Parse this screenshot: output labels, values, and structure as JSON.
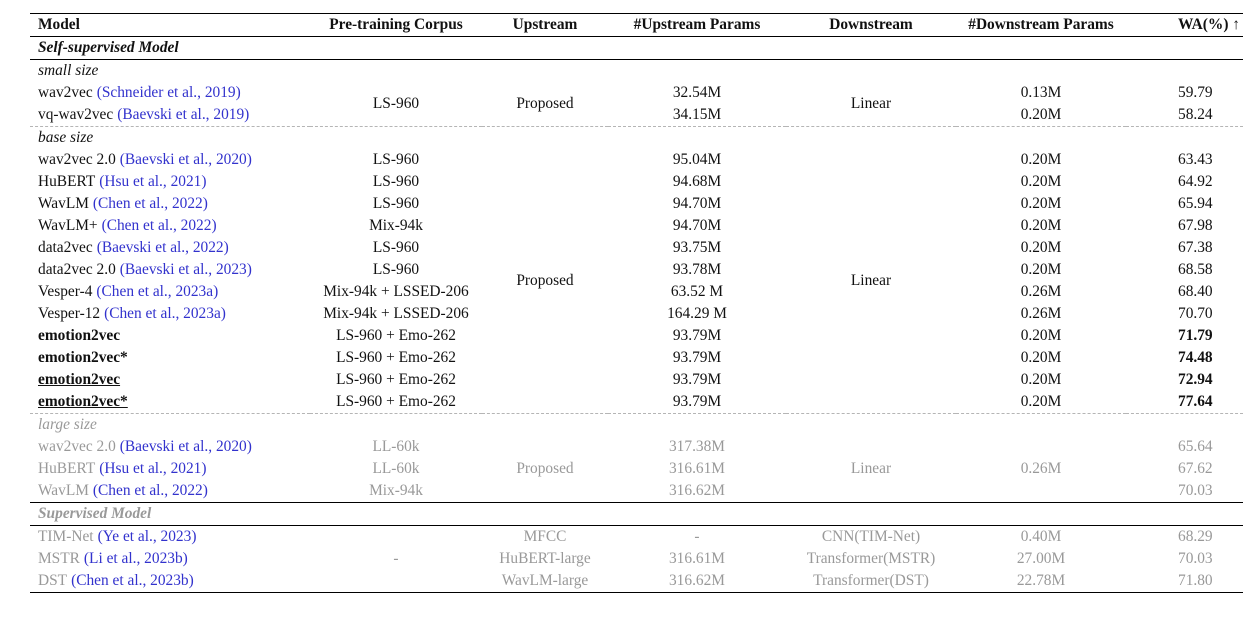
{
  "colors": {
    "citation": "#3232cd",
    "muted_text": "#999999",
    "rule": "#000000",
    "dashed_rule": "#b5b5b5",
    "background": "#ffffff",
    "text": "#111111"
  },
  "header": [
    "Model",
    "Pre-training Corpus",
    "Upstream",
    "#Upstream Params",
    "Downstream",
    "#Downstream Params",
    "WA(%) ↑"
  ],
  "self_supervised": {
    "title": "Self-supervised Model",
    "small": {
      "label": "small size",
      "corpus": "LS-960",
      "upstream": "Proposed",
      "downstream": "Linear",
      "rows": [
        {
          "model": "wav2vec",
          "cite": "(Schneider et al., 2019)",
          "up_params": "32.54M",
          "down_params": "0.13M",
          "wa": "59.79"
        },
        {
          "model": "vq-wav2vec",
          "cite": "(Baevski et al., 2019)",
          "up_params": "34.15M",
          "down_params": "0.20M",
          "wa": "58.24"
        }
      ]
    },
    "base": {
      "label": "base size",
      "upstream": "Proposed",
      "downstream": "Linear",
      "rows": [
        {
          "model": "wav2vec 2.0",
          "cite": "(Baevski et al., 2020)",
          "corpus": "LS-960",
          "up_params": "95.04M",
          "down_params": "0.20M",
          "wa": "63.43"
        },
        {
          "model": "HuBERT",
          "cite": "(Hsu et al., 2021)",
          "corpus": "LS-960",
          "up_params": "94.68M",
          "down_params": "0.20M",
          "wa": "64.92"
        },
        {
          "model": "WavLM",
          "cite": "(Chen et al., 2022)",
          "corpus": "LS-960",
          "up_params": "94.70M",
          "down_params": "0.20M",
          "wa": "65.94"
        },
        {
          "model": "WavLM+",
          "cite": "(Chen et al., 2022)",
          "corpus": "Mix-94k",
          "up_params": "94.70M",
          "down_params": "0.20M",
          "wa": "67.98"
        },
        {
          "model": "data2vec",
          "cite": "(Baevski et al., 2022)",
          "corpus": "LS-960",
          "up_params": "93.75M",
          "down_params": "0.20M",
          "wa": "67.38"
        },
        {
          "model": "data2vec 2.0",
          "cite": "(Baevski et al., 2023)",
          "corpus": "LS-960",
          "up_params": "93.78M",
          "down_params": "0.20M",
          "wa": "68.58"
        },
        {
          "model": "Vesper-4",
          "cite": "(Chen et al., 2023a)",
          "corpus": "Mix-94k + LSSED-206",
          "up_params": "63.52 M",
          "down_params": "0.26M",
          "wa": "68.40"
        },
        {
          "model": "Vesper-12",
          "cite": "(Chen et al., 2023a)",
          "corpus": "Mix-94k + LSSED-206",
          "up_params": "164.29 M",
          "down_params": "0.26M",
          "wa": "70.70"
        },
        {
          "model": "emotion2vec",
          "corpus": "LS-960 + Emo-262",
          "up_params": "93.79M",
          "down_params": "0.20M",
          "wa": "71.79"
        },
        {
          "model": "emotion2vec*",
          "corpus": "LS-960 + Emo-262",
          "up_params": "93.79M",
          "down_params": "0.20M",
          "wa": "74.48"
        },
        {
          "model": "emotion2vec",
          "corpus": "LS-960 + Emo-262",
          "up_params": "93.79M",
          "down_params": "0.20M",
          "wa": "72.94"
        },
        {
          "model": "emotion2vec*",
          "corpus": "LS-960 + Emo-262",
          "up_params": "93.79M",
          "down_params": "0.20M",
          "wa": "77.64"
        }
      ]
    },
    "large": {
      "label": "large size",
      "upstream": "Proposed",
      "downstream": "Linear",
      "down_params": "0.26M",
      "rows": [
        {
          "model": "wav2vec 2.0",
          "cite": "(Baevski et al., 2020)",
          "corpus": "LL-60k",
          "up_params": "317.38M",
          "wa": "65.64"
        },
        {
          "model": "HuBERT",
          "cite": "(Hsu et al., 2021)",
          "corpus": "LL-60k",
          "up_params": "316.61M",
          "wa": "67.62"
        },
        {
          "model": "WavLM",
          "cite": "(Chen et al., 2022)",
          "corpus": "Mix-94k",
          "up_params": "316.62M",
          "wa": "70.03"
        }
      ]
    }
  },
  "supervised": {
    "title": "Supervised Model",
    "corpus": "-",
    "rows": [
      {
        "model": "TIM-Net",
        "cite": "(Ye et al., 2023)",
        "upstream": "MFCC",
        "up_params": "-",
        "downstream": "CNN(TIM-Net)",
        "down_params": "0.40M",
        "wa": "68.29"
      },
      {
        "model": "MSTR",
        "cite": "(Li et al., 2023b)",
        "upstream": "HuBERT-large",
        "up_params": "316.61M",
        "downstream": "Transformer(MSTR)",
        "down_params": "27.00M",
        "wa": "70.03"
      },
      {
        "model": "DST",
        "cite": "(Chen et al., 2023b)",
        "upstream": "WavLM-large",
        "up_params": "316.62M",
        "downstream": "Transformer(DST)",
        "down_params": "22.78M",
        "wa": "71.80"
      }
    ]
  }
}
